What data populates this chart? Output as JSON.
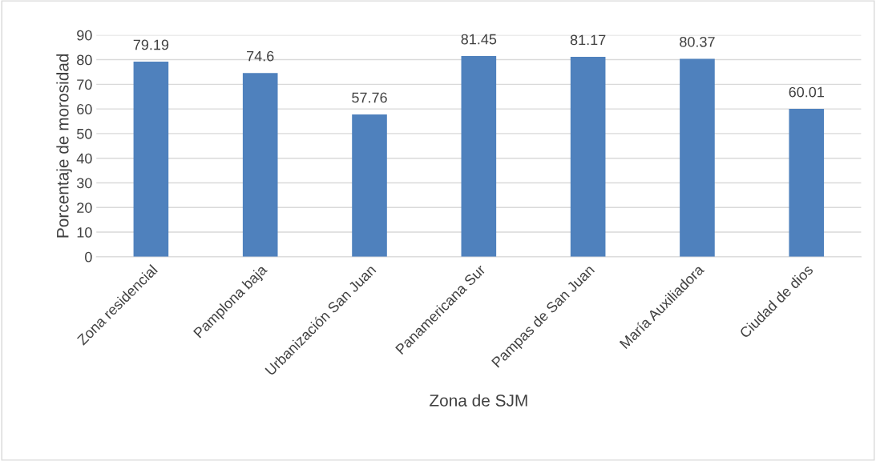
{
  "chart_data": {
    "type": "bar",
    "xlabel": "Zona de SJM",
    "ylabel": "Porcentaje de morosidad",
    "categories": [
      "Zona residencial",
      "Pamplona baja",
      "Urbanización San Juan",
      "Panamericana Sur",
      "Pampas de San Juan",
      "María Auxiliadora",
      "Ciudad de dios"
    ],
    "values": [
      79.19,
      74.6,
      57.76,
      81.45,
      81.17,
      80.37,
      60.01
    ],
    "color": "#4f81bd",
    "ylim": [
      0,
      90
    ],
    "yticks": [
      0,
      10,
      20,
      30,
      40,
      50,
      60,
      70,
      80,
      90
    ],
    "grid": "y",
    "data_labels": true,
    "legend": false
  }
}
